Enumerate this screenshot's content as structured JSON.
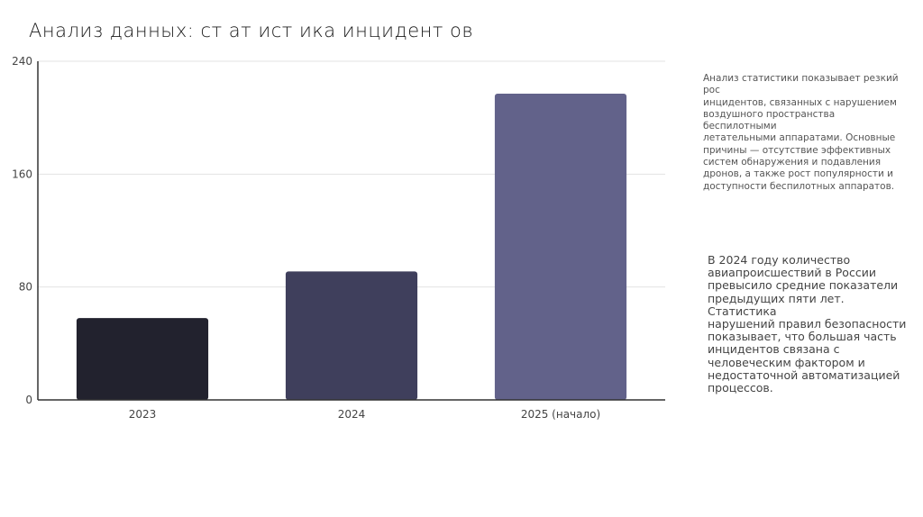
{
  "title": "Анализ данных: ст ат ист ика инцидент ов",
  "chart_data": {
    "type": "bar",
    "categories": [
      "2023",
      "2024",
      "2025 (начало)"
    ],
    "values": [
      58,
      91,
      217
    ],
    "ylim": [
      0,
      240
    ],
    "yticks": [
      0,
      80,
      160,
      240
    ],
    "grid": true,
    "colors": [
      "#22222e",
      "#3f3f5c",
      "#62628a"
    ]
  },
  "notes": {
    "analysis": "Анализ статистики показывает резкий рос\nинцидентов, связанных с нарушением\nвоздушного пространства беспилотными\nлетательными аппаратами. Основные\nпричины — отсутствие эффективных\nсистем обнаружения и подавления\nдронов, а также рост популярности и\nдоступности беспилотных аппаратов.",
    "stats_2024": "В 2024 году количество\nавиапроисшествий в России\nпревысило средние показатели\nпредыдущих пяти лет. Статистика\nнарушений правил безопасности\nпоказывает, что большая часть\nинцидентов связана с\nчеловеческим фактором и\nнедостаточной автоматизацией\nпроцессов."
  }
}
